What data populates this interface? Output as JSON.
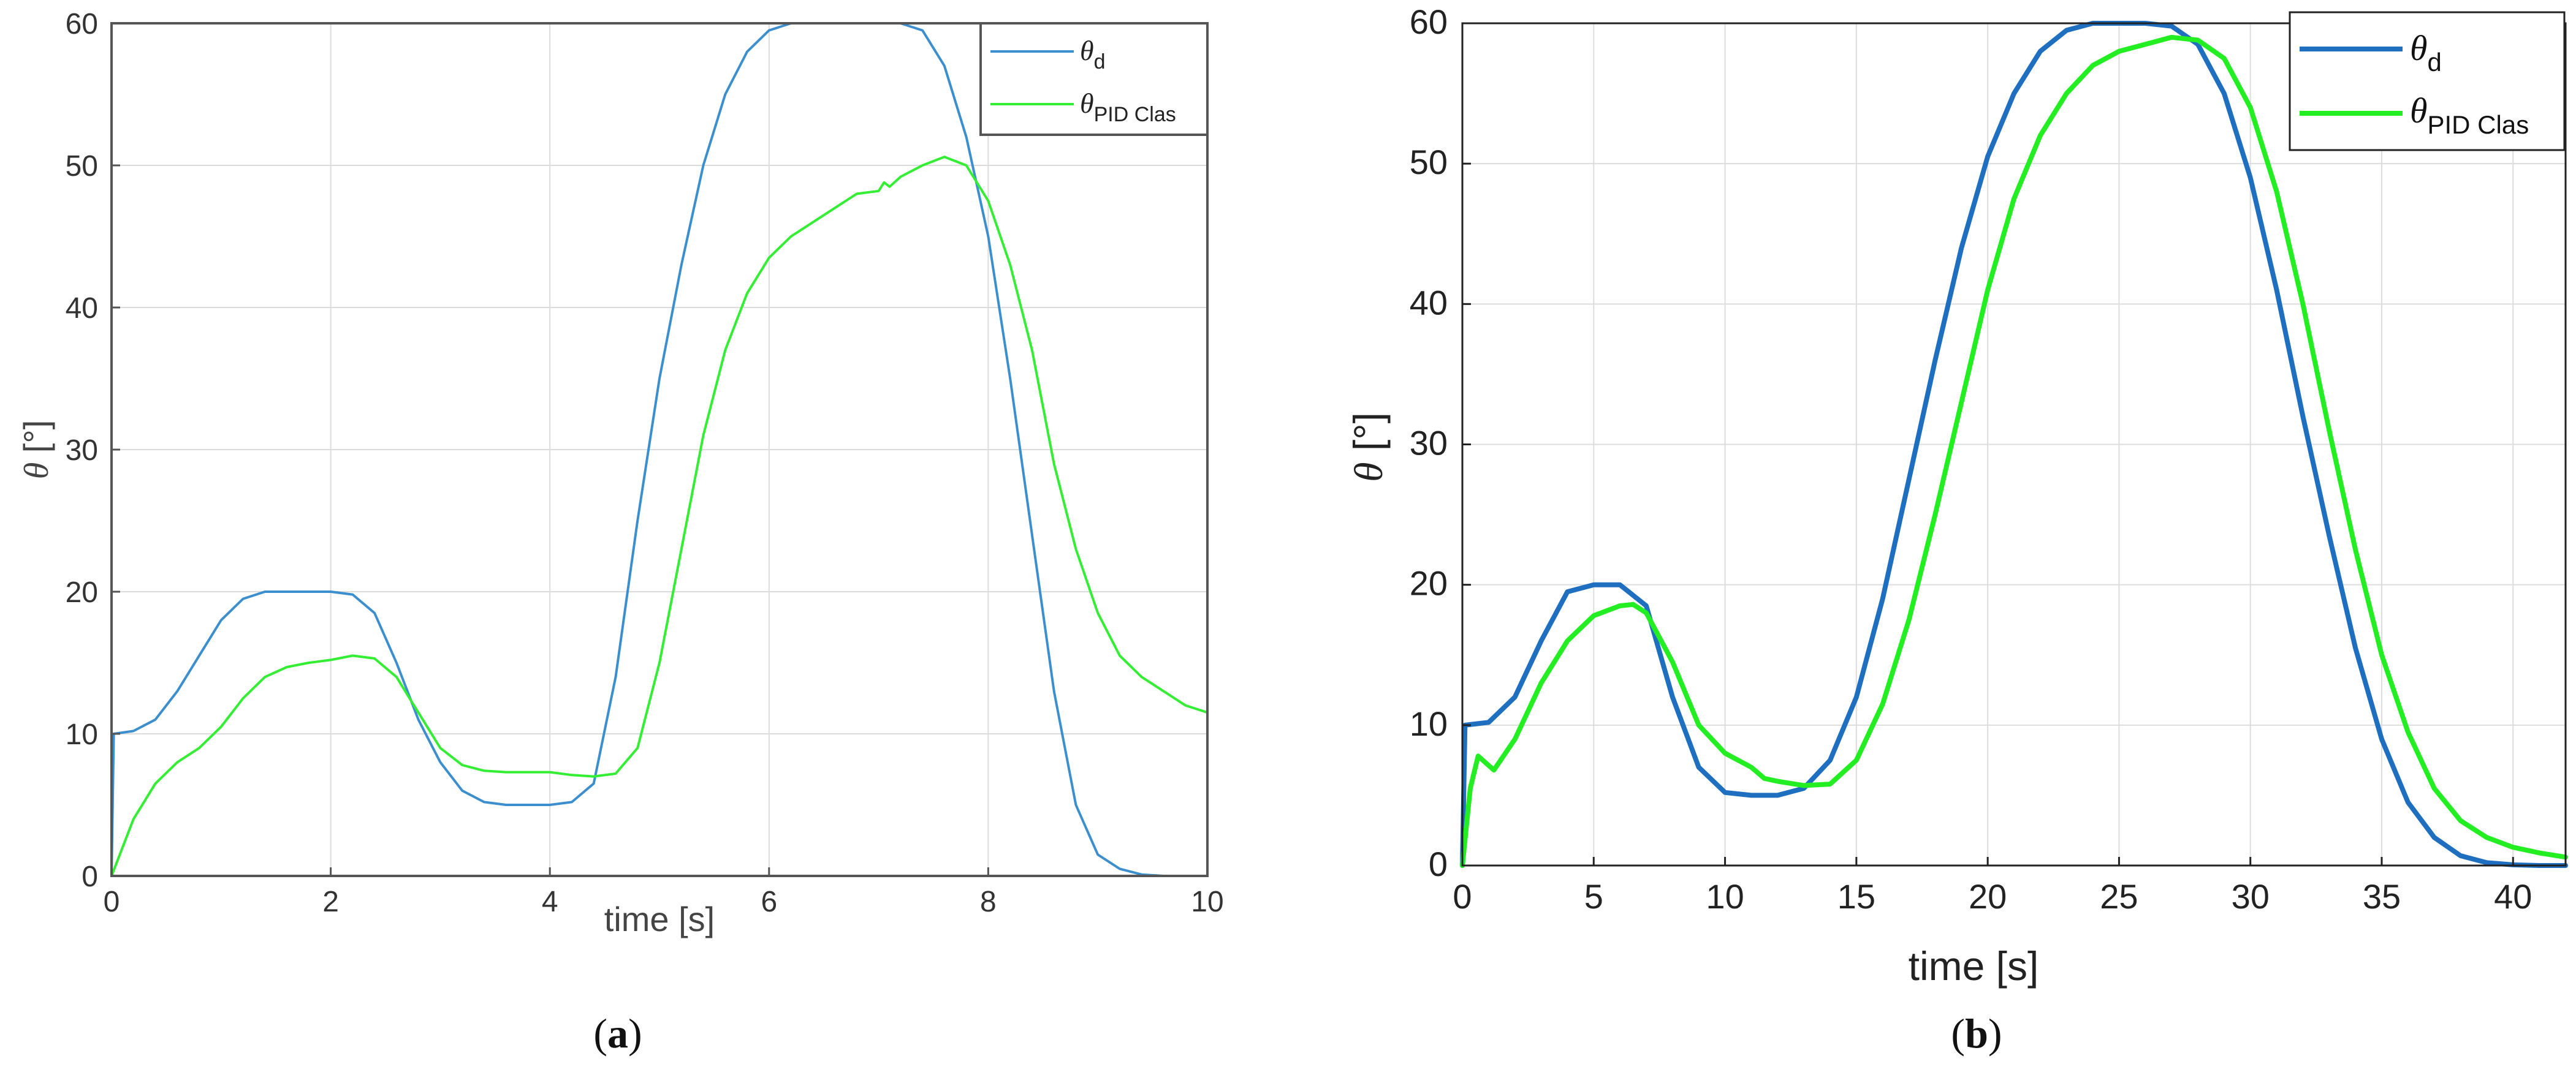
{
  "chart_data": [
    {
      "panel_label": "a",
      "type": "line",
      "xlabel": "time [s]",
      "ylabel": "θ [°]",
      "xlim": [
        0,
        10
      ],
      "ylim": [
        0,
        60
      ],
      "xticks": [
        "0",
        "2",
        "4",
        "6",
        "8",
        "10"
      ],
      "yticks": [
        "0",
        "10",
        "20",
        "30",
        "40",
        "50",
        "60"
      ],
      "grid": true,
      "legend_position": "top-right",
      "series": [
        {
          "name": "θd",
          "legend_main": "θ",
          "legend_sub": "d",
          "color": "#3c8fcf",
          "x": [
            0,
            0.02,
            0.2,
            0.4,
            0.6,
            0.8,
            1.0,
            1.2,
            1.4,
            1.6,
            1.8,
            2.0,
            2.2,
            2.4,
            2.6,
            2.8,
            3.0,
            3.2,
            3.4,
            3.6,
            3.8,
            4.0,
            4.2,
            4.4,
            4.6,
            4.8,
            5.0,
            5.2,
            5.4,
            5.6,
            5.8,
            6.0,
            6.2,
            6.4,
            6.6,
            6.8,
            7.0,
            7.2,
            7.4,
            7.6,
            7.8,
            8.0,
            8.2,
            8.4,
            8.6,
            8.8,
            9.0,
            9.2,
            9.4,
            9.6,
            9.8,
            10.0
          ],
          "y": [
            0,
            10,
            10.2,
            11,
            13,
            15.5,
            18,
            19.5,
            20,
            20,
            20,
            20,
            19.8,
            18.5,
            15,
            11,
            8,
            6,
            5.2,
            5,
            5,
            5,
            5.2,
            6.5,
            14,
            25,
            35,
            43,
            50,
            55,
            58,
            59.5,
            60,
            60,
            60,
            60,
            60,
            60,
            59.5,
            57,
            52,
            45,
            35,
            24,
            13,
            5,
            1.5,
            0.5,
            0.1,
            0,
            0,
            0
          ]
        },
        {
          "name": "θPID Clas",
          "legend_main": "θ",
          "legend_sub": "PID Clas",
          "color": "#33ee33",
          "x": [
            0,
            0.1,
            0.2,
            0.4,
            0.6,
            0.8,
            1.0,
            1.2,
            1.4,
            1.6,
            1.8,
            2.0,
            2.2,
            2.4,
            2.6,
            2.8,
            3.0,
            3.2,
            3.4,
            3.6,
            3.8,
            4.0,
            4.2,
            4.4,
            4.6,
            4.8,
            5.0,
            5.2,
            5.4,
            5.6,
            5.8,
            6.0,
            6.2,
            6.4,
            6.6,
            6.8,
            7.0,
            7.05,
            7.1,
            7.2,
            7.4,
            7.6,
            7.8,
            8.0,
            8.2,
            8.4,
            8.6,
            8.8,
            9.0,
            9.2,
            9.4,
            9.6,
            9.8,
            10.0
          ],
          "y": [
            0,
            2,
            4,
            6.5,
            8,
            9,
            10.5,
            12.5,
            14,
            14.7,
            15,
            15.2,
            15.5,
            15.3,
            14,
            11.5,
            9,
            7.8,
            7.4,
            7.3,
            7.3,
            7.3,
            7.1,
            7,
            7.2,
            9,
            15,
            23,
            31,
            37,
            41,
            43.5,
            45,
            46,
            47,
            48,
            48.2,
            48.8,
            48.5,
            49.2,
            50,
            50.6,
            50,
            47.5,
            43,
            37,
            29,
            23,
            18.5,
            15.5,
            14,
            13,
            12,
            11.5
          ]
        }
      ]
    },
    {
      "panel_label": "b",
      "type": "line",
      "xlabel": "time [s]",
      "ylabel": "θ [°]",
      "xlim": [
        0,
        42
      ],
      "ylim": [
        0,
        60
      ],
      "xticks": [
        "0",
        "5",
        "10",
        "15",
        "20",
        "25",
        "30",
        "35",
        "40"
      ],
      "yticks": [
        "0",
        "10",
        "20",
        "30",
        "40",
        "50",
        "60"
      ],
      "grid": true,
      "legend_position": "top-right",
      "series": [
        {
          "name": "θd",
          "legend_main": "θ",
          "legend_sub": "d",
          "color": "#1f6fc0",
          "x": [
            0,
            0.1,
            1,
            2,
            3,
            4,
            5,
            6,
            7,
            8,
            9,
            10,
            11,
            12,
            13,
            14,
            15,
            16,
            17,
            18,
            19,
            20,
            21,
            22,
            23,
            24,
            25,
            26,
            27,
            28,
            29,
            30,
            31,
            32,
            33,
            34,
            35,
            36,
            37,
            38,
            39,
            40,
            41,
            42
          ],
          "y": [
            0,
            10,
            10.2,
            12,
            16,
            19.5,
            20,
            20,
            18.5,
            12,
            7,
            5.2,
            5,
            5,
            5.5,
            7.5,
            12,
            19,
            27.5,
            36,
            44,
            50.5,
            55,
            58,
            59.5,
            60,
            60,
            60,
            59.8,
            58.5,
            55,
            49,
            41,
            32,
            23.5,
            15.5,
            9,
            4.5,
            2,
            0.7,
            0.2,
            0.05,
            0,
            0
          ]
        },
        {
          "name": "θPID Clas",
          "legend_main": "θ",
          "legend_sub": "PID Clas",
          "color": "#22ee22",
          "x": [
            0,
            0.3,
            0.6,
            1.2,
            2,
            3,
            4,
            5,
            6,
            6.5,
            7,
            8,
            9,
            10,
            11,
            11.5,
            12,
            13,
            14,
            15,
            16,
            17,
            18,
            19,
            20,
            21,
            22,
            23,
            24,
            25,
            26,
            27,
            28,
            29,
            30,
            31,
            32,
            33,
            34,
            35,
            36,
            37,
            38,
            39,
            40,
            41,
            42
          ],
          "y": [
            0,
            5.5,
            7.8,
            6.8,
            9,
            13,
            16,
            17.8,
            18.5,
            18.6,
            18,
            14.5,
            10,
            8,
            7,
            6.2,
            6,
            5.7,
            5.8,
            7.5,
            11.5,
            17.5,
            25,
            33,
            41,
            47.5,
            52,
            55,
            57,
            58,
            58.5,
            59,
            58.8,
            57.5,
            54,
            48,
            40,
            31,
            22.5,
            15,
            9.5,
            5.5,
            3.2,
            2,
            1.3,
            0.9,
            0.6
          ]
        }
      ]
    }
  ],
  "labels": {
    "panel_a": "(a)",
    "panel_b": "(b)"
  }
}
